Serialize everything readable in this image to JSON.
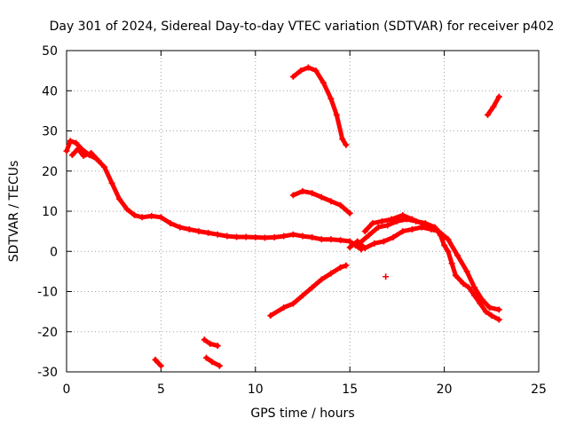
{
  "chart_data": {
    "type": "scatter",
    "title": "Day 301 of 2024, Sidereal Day-to-day VTEC variation (SDTVAR) for receiver p402",
    "xlabel": "GPS time / hours",
    "ylabel": "SDTVAR / TECUs",
    "xlim": [
      0,
      25
    ],
    "ylim": [
      -30,
      50
    ],
    "xticks": [
      0,
      5,
      10,
      15,
      20,
      25
    ],
    "yticks": [
      -30,
      -20,
      -10,
      0,
      10,
      20,
      30,
      40,
      50
    ],
    "grid": true,
    "marker": "+",
    "color": "#ff0000",
    "series": [
      {
        "name": "main-track",
        "points": [
          [
            0,
            25
          ],
          [
            0.2,
            27.5
          ],
          [
            0.5,
            27
          ],
          [
            0.8,
            25.5
          ],
          [
            1.2,
            24
          ],
          [
            1.6,
            23
          ],
          [
            2.0,
            21
          ],
          [
            2.4,
            17
          ],
          [
            2.8,
            13
          ],
          [
            3.2,
            10.5
          ],
          [
            3.6,
            9
          ],
          [
            4.0,
            8.5
          ],
          [
            4.5,
            8.8
          ],
          [
            5.0,
            8.5
          ],
          [
            5.5,
            7
          ],
          [
            6.0,
            6
          ],
          [
            6.5,
            5.5
          ],
          [
            7.0,
            5
          ],
          [
            7.5,
            4.6
          ],
          [
            8.0,
            4.2
          ],
          [
            8.5,
            3.8
          ],
          [
            9.0,
            3.6
          ],
          [
            9.5,
            3.6
          ],
          [
            10.0,
            3.5
          ],
          [
            10.5,
            3.4
          ],
          [
            11.0,
            3.5
          ],
          [
            11.5,
            3.8
          ],
          [
            12.0,
            4.2
          ],
          [
            12.5,
            3.8
          ],
          [
            13.0,
            3.5
          ],
          [
            13.5,
            3.0
          ],
          [
            14.0,
            3.0
          ],
          [
            14.5,
            2.8
          ],
          [
            15.0,
            2.5
          ],
          [
            15.3,
            1.5
          ],
          [
            15.6,
            0.5
          ]
        ]
      },
      {
        "name": "recovery-segment",
        "points": [
          [
            15.5,
            2
          ],
          [
            16.0,
            4
          ],
          [
            16.5,
            6
          ],
          [
            17.0,
            6.5
          ],
          [
            17.5,
            7.5
          ],
          [
            18.0,
            8
          ],
          [
            18.5,
            7.5
          ],
          [
            19.0,
            7
          ],
          [
            19.5,
            6
          ],
          [
            19.8,
            4
          ],
          [
            20.0,
            1.5
          ],
          [
            20.2,
            0
          ],
          [
            20.4,
            -3
          ],
          [
            20.6,
            -6
          ],
          [
            21.0,
            -8
          ],
          [
            21.3,
            -9
          ],
          [
            21.6,
            -11
          ],
          [
            21.9,
            -13
          ],
          [
            22.2,
            -15
          ],
          [
            22.5,
            -16
          ],
          [
            22.9,
            -17
          ]
        ]
      },
      {
        "name": "afternoon-upper",
        "points": [
          [
            15.8,
            5
          ],
          [
            16.2,
            7
          ],
          [
            16.7,
            7.5
          ],
          [
            17.2,
            8
          ],
          [
            17.8,
            9
          ],
          [
            18.3,
            8
          ],
          [
            18.8,
            7
          ],
          [
            19.3,
            6
          ],
          [
            19.7,
            5
          ],
          [
            20.2,
            3
          ],
          [
            20.7,
            -1
          ],
          [
            21.2,
            -5
          ],
          [
            21.6,
            -9
          ],
          [
            22.0,
            -12
          ],
          [
            22.4,
            -14
          ],
          [
            22.9,
            -14.5
          ]
        ]
      },
      {
        "name": "afternoon-lower",
        "points": [
          [
            15.0,
            1
          ],
          [
            15.4,
            2.5
          ],
          [
            15.8,
            0.8
          ],
          [
            16.3,
            2
          ],
          [
            16.8,
            2.5
          ],
          [
            17.3,
            3.5
          ],
          [
            17.8,
            5
          ],
          [
            18.3,
            5.5
          ],
          [
            18.8,
            6
          ],
          [
            19.3,
            5.5
          ],
          [
            19.7,
            5
          ],
          [
            20.0,
            3.5
          ]
        ]
      },
      {
        "name": "pre-dawn-jitter",
        "points": [
          [
            0.3,
            24
          ],
          [
            0.6,
            25.5
          ],
          [
            0.9,
            23.8
          ],
          [
            1.3,
            24.5
          ],
          [
            1.7,
            22.5
          ]
        ]
      },
      {
        "name": "arc-top",
        "points": [
          [
            12.0,
            43.5
          ],
          [
            12.4,
            45
          ],
          [
            12.8,
            45.8
          ],
          [
            13.2,
            45
          ],
          [
            13.6,
            42
          ],
          [
            14.0,
            38
          ],
          [
            14.3,
            34
          ],
          [
            14.6,
            28
          ],
          [
            14.8,
            26.5
          ]
        ]
      },
      {
        "name": "arc-middle",
        "points": [
          [
            12.0,
            14
          ],
          [
            12.5,
            15
          ],
          [
            13.0,
            14.5
          ],
          [
            13.5,
            13.5
          ],
          [
            14.0,
            12.5
          ],
          [
            14.5,
            11.5
          ],
          [
            15.0,
            9.5
          ]
        ]
      },
      {
        "name": "rising-line",
        "points": [
          [
            10.8,
            -16
          ],
          [
            11.5,
            -14
          ],
          [
            12.0,
            -13
          ],
          [
            12.5,
            -11
          ],
          [
            13.0,
            -9
          ],
          [
            13.5,
            -7
          ],
          [
            14.0,
            -5.5
          ],
          [
            14.5,
            -4
          ],
          [
            14.8,
            -3.5
          ]
        ]
      },
      {
        "name": "short-upper-right",
        "points": [
          [
            22.3,
            34
          ],
          [
            22.6,
            36
          ],
          [
            22.9,
            38.5
          ]
        ]
      },
      {
        "name": "outlier",
        "points": [
          [
            16.9,
            -6.3
          ]
        ]
      },
      {
        "name": "low-left",
        "points": [
          [
            4.7,
            -27
          ],
          [
            5.0,
            -28.5
          ]
        ]
      },
      {
        "name": "low-mid-a",
        "points": [
          [
            7.3,
            -22
          ],
          [
            7.6,
            -23
          ],
          [
            8.0,
            -23.5
          ]
        ]
      },
      {
        "name": "low-mid-b",
        "points": [
          [
            7.4,
            -26.5
          ],
          [
            7.7,
            -27.5
          ],
          [
            8.1,
            -28.5
          ]
        ]
      }
    ]
  }
}
